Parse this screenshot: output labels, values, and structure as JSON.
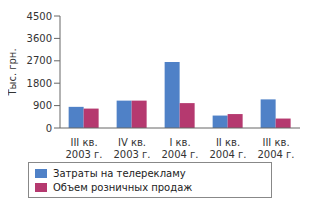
{
  "chart_data": {
    "type": "bar",
    "y_label": "Тыс. грн.",
    "categories": [
      "III кв. 2003 г.",
      "IV кв. 2003 г.",
      "I кв. 2004 г.",
      "II кв. 2004 г.",
      "III кв. 2004 г."
    ],
    "series": [
      {
        "name": "Затраты на телерекламу",
        "color": "#4f81c7",
        "values": [
          850,
          1100,
          2650,
          500,
          1150
        ]
      },
      {
        "name": "Объем розничных продаж",
        "color": "#b5396f",
        "values": [
          780,
          1100,
          1000,
          560,
          380
        ]
      }
    ],
    "ylim": [
      0,
      4500
    ],
    "yticks": [
      0,
      900,
      1800,
      2700,
      3600,
      4500
    ],
    "grid": false,
    "legend": "bottom"
  }
}
